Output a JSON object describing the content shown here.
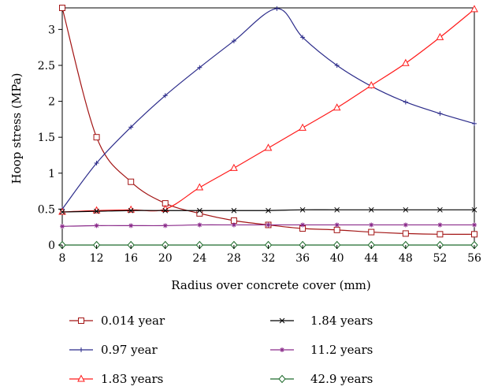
{
  "chart_data": {
    "type": "line",
    "title": "",
    "xlabel": "Radius over concrete cover (mm)",
    "ylabel": "Hoop stress (MPa)",
    "xlim": [
      8,
      56
    ],
    "ylim": [
      0,
      3.3
    ],
    "xticks": [
      8,
      12,
      16,
      20,
      24,
      28,
      32,
      36,
      40,
      44,
      48,
      52,
      56
    ],
    "yticks": [
      0,
      0.5,
      1,
      1.5,
      2,
      2.5,
      3
    ],
    "ytick_labels": [
      "0",
      "0.5",
      "1",
      "1.5",
      "2",
      "2.5",
      "3"
    ],
    "grid": false,
    "legend_position": "bottom",
    "series": [
      {
        "name": "0.014 year",
        "color": "#a31515",
        "marker": "square",
        "x": [
          8,
          12,
          16,
          20,
          24,
          28,
          32,
          36,
          40,
          44,
          48,
          52,
          56
        ],
        "y": [
          3.3,
          1.5,
          0.88,
          0.58,
          0.44,
          0.34,
          0.28,
          0.23,
          0.21,
          0.18,
          0.16,
          0.15,
          0.15
        ]
      },
      {
        "name": "0.97 year",
        "color": "#2b2b8a",
        "marker": "plus",
        "x": [
          8,
          12,
          16,
          20,
          24,
          28,
          33,
          36,
          40,
          44,
          48,
          52,
          56
        ],
        "y": [
          0.5,
          1.14,
          1.64,
          2.08,
          2.47,
          2.84,
          3.29,
          2.89,
          2.5,
          2.21,
          1.99,
          1.83,
          1.69
        ]
      },
      {
        "name": "1.83 years",
        "color": "#ff1a1a",
        "marker": "triangle",
        "x": [
          8,
          12,
          16,
          20,
          24,
          28,
          32,
          36,
          40,
          44,
          48,
          52,
          56
        ],
        "y": [
          0.46,
          0.48,
          0.49,
          0.5,
          0.8,
          1.07,
          1.35,
          1.63,
          1.91,
          2.22,
          2.53,
          2.89,
          3.28
        ]
      },
      {
        "name": "1.84 years",
        "color": "#000000",
        "marker": "x",
        "x": [
          8,
          12,
          16,
          20,
          24,
          28,
          32,
          36,
          40,
          44,
          48,
          52,
          56
        ],
        "y": [
          0.46,
          0.47,
          0.48,
          0.48,
          0.48,
          0.48,
          0.48,
          0.49,
          0.49,
          0.49,
          0.49,
          0.49,
          0.49
        ]
      },
      {
        "name": "11.2 years",
        "color": "#8a2a8a",
        "marker": "star",
        "x": [
          8,
          12,
          16,
          20,
          24,
          28,
          32,
          36,
          40,
          44,
          48,
          52,
          56
        ],
        "y": [
          0.26,
          0.27,
          0.27,
          0.27,
          0.28,
          0.28,
          0.28,
          0.28,
          0.28,
          0.28,
          0.28,
          0.28,
          0.28
        ]
      },
      {
        "name": "42.9 years",
        "color": "#1f6b2c",
        "marker": "diamond",
        "x": [
          8,
          12,
          16,
          20,
          24,
          28,
          32,
          36,
          40,
          44,
          48,
          52,
          56
        ],
        "y": [
          0,
          0,
          0,
          0,
          0,
          0,
          0,
          0,
          0,
          0,
          0,
          0,
          0
        ]
      }
    ]
  }
}
